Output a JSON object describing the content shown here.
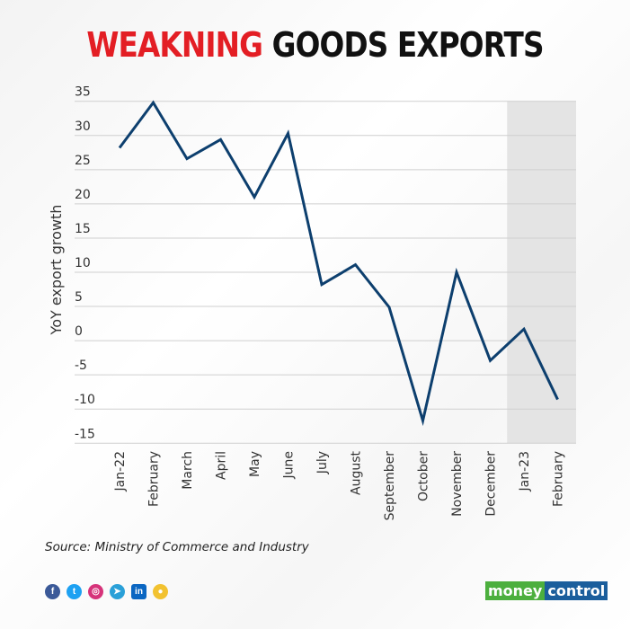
{
  "title": {
    "highlight": "WEAKNING",
    "rest": " GOODS EXPORTS",
    "highlight_color": "#e31e24"
  },
  "source": "Source: Ministry of Commerce and Industry",
  "social_icons": [
    "facebook-icon",
    "twitter-icon",
    "instagram-icon",
    "telegram-icon",
    "linkedin-icon",
    "koo-icon"
  ],
  "logo": {
    "part1": "money",
    "part2": "control"
  },
  "chart_data": {
    "type": "line",
    "title": "WEAKNING GOODS EXPORTS",
    "xlabel": "",
    "ylabel": "YoY export growth",
    "categories": [
      "Jan-22",
      "February",
      "March",
      "April",
      "May",
      "June",
      "July",
      "August",
      "September",
      "October",
      "November",
      "December",
      "Jan-23",
      "February"
    ],
    "values": [
      28.2,
      34.8,
      26.6,
      29.4,
      21.0,
      30.3,
      8.2,
      11.1,
      4.9,
      -11.7,
      10.0,
      -2.9,
      1.7,
      -8.6
    ],
    "ylim": [
      -15,
      35
    ],
    "yticks": [
      35,
      30,
      25,
      20,
      15,
      10,
      5,
      0,
      -5,
      -10,
      -15
    ],
    "grid": true,
    "line_color": "#0d3f6e",
    "shaded_region": {
      "from": "Jan-23",
      "to": "February",
      "color": "#e4e4e4"
    }
  }
}
